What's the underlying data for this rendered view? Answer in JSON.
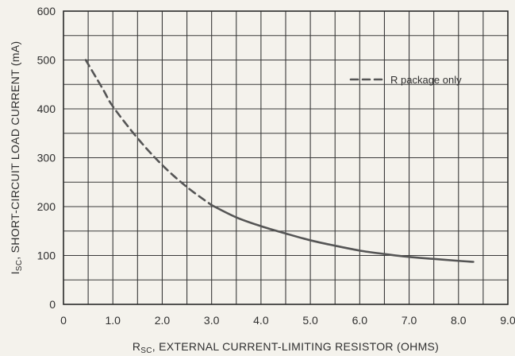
{
  "chart_data": {
    "type": "line",
    "xlabel_main": "R",
    "xlabel_sub": "SC",
    "xlabel_rest": ", EXTERNAL CURRENT-LIMITING RESISTOR (OHMS)",
    "ylabel_main": "I",
    "ylabel_sub": "SC",
    "ylabel_rest": ", SHORT-CIRCUIT LOAD CURRENT (mA)",
    "xlim": [
      0,
      9
    ],
    "ylim": [
      0,
      600
    ],
    "x_ticks": [
      0,
      1,
      2,
      3,
      4,
      5,
      6,
      7,
      8,
      9
    ],
    "x_tick_labels": [
      "0",
      "1.0",
      "2.0",
      "3.0",
      "4.0",
      "5.0",
      "6.0",
      "7.0",
      "8.0",
      "9.0"
    ],
    "y_ticks": [
      0,
      100,
      200,
      300,
      400,
      500,
      600
    ],
    "y_tick_labels": [
      "0",
      "100",
      "200",
      "300",
      "400",
      "500",
      "600"
    ],
    "x_grid_lines": [
      0.5,
      1,
      1.5,
      2,
      2.5,
      3,
      3.5,
      4,
      4.5,
      5,
      5.5,
      6,
      6.5,
      7,
      7.5,
      8,
      8.5
    ],
    "y_grid_lines": [
      50,
      100,
      150,
      200,
      250,
      300,
      350,
      400,
      450,
      500,
      550
    ],
    "grid": true,
    "legend": {
      "entries": [
        {
          "label": "R package only",
          "style": "dashed"
        }
      ],
      "placement": "top-right"
    },
    "series": [
      {
        "name": "R package only",
        "style": "dashed",
        "x": [
          0.45,
          0.8,
          1.0,
          1.5,
          2.0,
          2.5,
          3.0
        ],
        "y": [
          500,
          440,
          405,
          340,
          285,
          240,
          203
        ]
      },
      {
        "style": "solid",
        "x": [
          3.0,
          3.5,
          4.0,
          4.5,
          5.0,
          5.5,
          6.0,
          6.5,
          7.0,
          7.5,
          8.0,
          8.3
        ],
        "y": [
          203,
          178,
          160,
          145,
          131,
          120,
          110,
          103,
          97,
          93,
          89,
          87
        ]
      }
    ]
  }
}
